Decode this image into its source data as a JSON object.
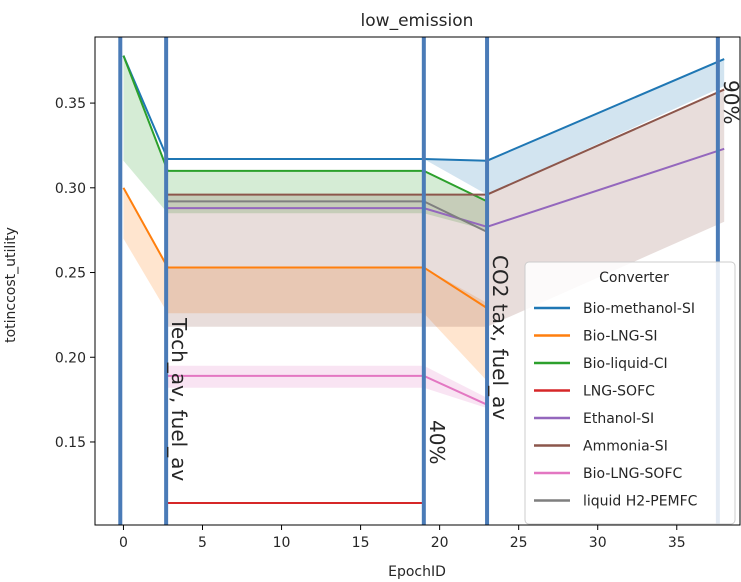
{
  "chart_data": {
    "type": "line",
    "title": "low_emission",
    "xlabel": "EpochID",
    "ylabel": "totinccost_utility",
    "xlim": [
      -1.8,
      39.0
    ],
    "ylim": [
      0.101,
      0.389
    ],
    "xticks": [
      0,
      5,
      10,
      15,
      20,
      25,
      30,
      35
    ],
    "yticks": [
      0.15,
      0.2,
      0.25,
      0.3,
      0.35
    ],
    "ytick_labels": [
      "0.15",
      "0.20",
      "0.25",
      "0.30",
      "0.35"
    ],
    "grid": false,
    "legend": {
      "title": "Converter",
      "placement": "lower-right"
    },
    "series": [
      {
        "name": "Bio-methanol-SI",
        "color": "#1f77b4",
        "x": [
          0,
          2.8,
          19.0,
          23.0,
          38.0
        ],
        "y": [
          0.378,
          0.317,
          0.317,
          0.316,
          0.376
        ],
        "band_low": [
          0.378,
          0.317,
          0.317,
          0.296,
          0.36
        ],
        "band_high": [
          0.378,
          0.317,
          0.317,
          0.316,
          0.376
        ]
      },
      {
        "name": "Bio-LNG-SI",
        "color": "#ff7f0e",
        "x": [
          0,
          2.8,
          19.0,
          23.0
        ],
        "y": [
          0.3,
          0.253,
          0.253,
          0.229
        ],
        "band_low": [
          0.27,
          0.226,
          0.226,
          0.186
        ],
        "band_high": [
          0.3,
          0.253,
          0.253,
          0.232
        ]
      },
      {
        "name": "Bio-liquid-CI",
        "color": "#2ca02c",
        "x": [
          0,
          2.8,
          19.0,
          23.0
        ],
        "y": [
          0.378,
          0.31,
          0.31,
          0.292
        ],
        "band_low": [
          0.316,
          0.285,
          0.285,
          0.275
        ],
        "band_high": [
          0.378,
          0.31,
          0.31,
          0.292
        ]
      },
      {
        "name": "LNG-SOFC",
        "color": "#d62728",
        "x": [
          2.8,
          19.0
        ],
        "y": [
          0.114,
          0.114
        ],
        "band_low": [
          0.114,
          0.114
        ],
        "band_high": [
          0.114,
          0.114
        ]
      },
      {
        "name": "Ethanol-SI",
        "color": "#9467bd",
        "x": [
          2.8,
          19.0,
          23.0,
          38.0
        ],
        "y": [
          0.288,
          0.288,
          0.277,
          0.323
        ],
        "band_low": [
          0.288,
          0.288,
          0.277,
          0.323
        ],
        "band_high": [
          0.288,
          0.288,
          0.277,
          0.323
        ]
      },
      {
        "name": "Ammonia-SI",
        "color": "#8c564b",
        "x": [
          2.8,
          19.0,
          23.0,
          38.0
        ],
        "y": [
          0.296,
          0.296,
          0.296,
          0.358
        ],
        "band_low": [
          0.218,
          0.218,
          0.218,
          0.28
        ],
        "band_high": [
          0.296,
          0.296,
          0.296,
          0.358
        ]
      },
      {
        "name": "Bio-LNG-SOFC",
        "color": "#e377c2",
        "x": [
          2.8,
          19.0,
          23.0
        ],
        "y": [
          0.189,
          0.189,
          0.172
        ],
        "band_low": [
          0.182,
          0.182,
          0.17
        ],
        "band_high": [
          0.195,
          0.195,
          0.176
        ]
      },
      {
        "name": "liquid H2-PEMFC",
        "color": "#7f7f7f",
        "x": [
          2.8,
          19.0,
          23.0
        ],
        "y": [
          0.292,
          0.292,
          0.274
        ],
        "band_low": [
          0.292,
          0.292,
          0.274
        ],
        "band_high": [
          0.292,
          0.292,
          0.274
        ]
      }
    ],
    "vlines": [
      {
        "x": -0.2,
        "color": "#4a7bb7"
      },
      {
        "x": 2.7,
        "color": "#4a7bb7",
        "label": "Tech_av, fuel_av"
      },
      {
        "x": 19.0,
        "color": "#4a7bb7",
        "label": "40%"
      },
      {
        "x": 23.0,
        "color": "#4a7bb7",
        "label": "CO2 tax, fuel_av"
      },
      {
        "x": 37.6,
        "color": "#4a7bb7",
        "label": "90%"
      }
    ]
  }
}
